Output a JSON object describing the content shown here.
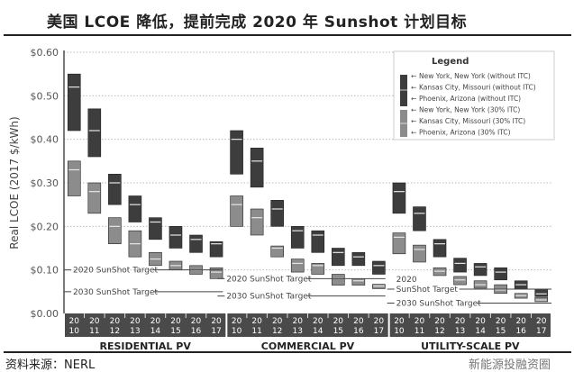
{
  "title": "美国 LCOE 降低，提前完成 2020 年 Sunshot 计划目标",
  "source": "资料来源：NERL",
  "watermark": "新能源投融资圈",
  "chart_data": {
    "type": "bar",
    "subtype": "floating-range",
    "ylabel": "Real LCOE (2017 $/kWh)",
    "ylim": [
      0,
      0.6
    ],
    "yticks": [
      "$0.00",
      "$0.10",
      "$0.20",
      "$0.30",
      "$0.40",
      "$0.50",
      "$0.60"
    ],
    "grid": true,
    "years": [
      "2010",
      "2011",
      "2012",
      "2013",
      "2014",
      "2015",
      "2016",
      "2017"
    ],
    "colors": {
      "without_itc": "#3d3d3d",
      "with_itc": "#8c8c8c",
      "median_line": "#e6e6e6"
    },
    "legend": {
      "title": "Legend",
      "placement": "top-right",
      "entries": [
        "New York, New York (without ITC)",
        "Kansas City, Missouri (without ITC)",
        "Phoenix, Arizona (without ITC)",
        "New York, New York (30% ITC)",
        "Kansas City, Missouri (30% ITC)",
        "Phoenix, Arizona (30% ITC)"
      ]
    },
    "target_labels": {
      "t2020": "2020 SunShot Target",
      "t2030": "2030 SunShot Target",
      "t2020_split_a": "2020",
      "t2020_split_b": "SunShot Target"
    },
    "groups": [
      {
        "name": "RESIDENTIAL PV",
        "target_2020": 0.1,
        "target_2030": 0.05,
        "without_itc": {
          "high": [
            0.55,
            0.47,
            0.32,
            0.27,
            0.22,
            0.2,
            0.18,
            0.165
          ],
          "mid": [
            0.52,
            0.42,
            0.3,
            0.25,
            0.21,
            0.18,
            0.17,
            0.16
          ],
          "low": [
            0.42,
            0.36,
            0.25,
            0.21,
            0.17,
            0.15,
            0.14,
            0.13
          ]
        },
        "with_itc": {
          "high": [
            0.35,
            0.3,
            0.22,
            0.19,
            0.14,
            0.12,
            0.11,
            0.105
          ],
          "mid": [
            0.33,
            0.28,
            0.2,
            0.16,
            0.125,
            0.11,
            0.1,
            0.095
          ],
          "low": [
            0.27,
            0.23,
            0.16,
            0.13,
            0.11,
            0.1,
            0.09,
            0.08
          ]
        }
      },
      {
        "name": "COMMERCIAL PV",
        "target_2020": 0.08,
        "target_2030": 0.04,
        "without_itc": {
          "high": [
            0.42,
            0.38,
            0.26,
            0.2,
            0.19,
            0.15,
            0.14,
            0.12
          ],
          "mid": [
            0.4,
            0.35,
            0.24,
            0.19,
            0.18,
            0.14,
            0.13,
            0.11
          ],
          "low": [
            0.32,
            0.29,
            0.2,
            0.15,
            0.14,
            0.11,
            0.11,
            0.09
          ]
        },
        "with_itc": {
          "high": [
            0.27,
            0.24,
            0.155,
            0.125,
            0.115,
            0.09,
            0.08,
            0.067
          ],
          "mid": [
            0.25,
            0.22,
            0.15,
            0.115,
            0.11,
            0.08,
            0.075,
            0.063
          ],
          "low": [
            0.2,
            0.18,
            0.13,
            0.095,
            0.09,
            0.065,
            0.065,
            0.057
          ]
        }
      },
      {
        "name": "UTILITY-SCALE PV",
        "target_2020": 0.06,
        "target_2030": 0.03,
        "without_itc": {
          "high": [
            0.3,
            0.245,
            0.17,
            0.127,
            0.115,
            0.105,
            0.075,
            0.056
          ],
          "mid": [
            0.28,
            0.23,
            0.16,
            0.115,
            0.107,
            0.095,
            0.066,
            0.045
          ],
          "low": [
            0.23,
            0.19,
            0.13,
            0.095,
            0.087,
            0.077,
            0.056,
            0.039
          ]
        },
        "with_itc": {
          "high": [
            0.185,
            0.157,
            0.105,
            0.085,
            0.075,
            0.066,
            0.046,
            0.037
          ],
          "mid": [
            0.175,
            0.147,
            0.097,
            0.077,
            0.066,
            0.054,
            0.041,
            0.031
          ],
          "low": [
            0.137,
            0.118,
            0.087,
            0.066,
            0.058,
            0.046,
            0.035,
            0.027
          ]
        }
      }
    ]
  }
}
